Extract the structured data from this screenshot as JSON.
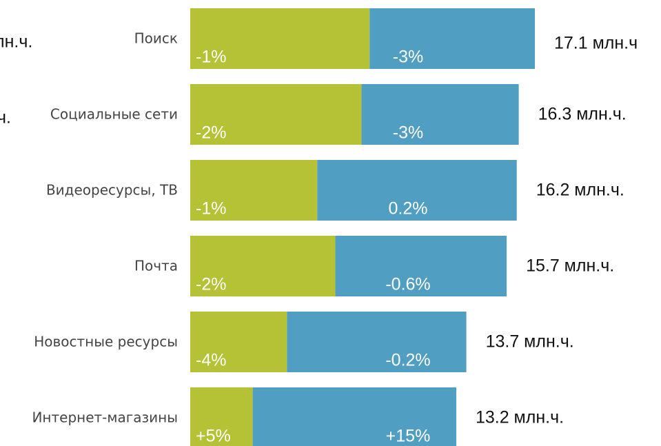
{
  "chart_data": {
    "type": "stacked-bar-horizontal",
    "categories": [
      "Поиск",
      "Социальные сети",
      "Видеоресурсы, ТВ",
      "Почта",
      "Новостные ресурсы",
      "Интернет-магазины"
    ],
    "series": [
      {
        "color": "#b5c235",
        "values": [
          8.9,
          8.5,
          6.3,
          7.2,
          4.8,
          3.1
        ],
        "change_labels": [
          "-1%",
          "-2%",
          "-1%",
          "-2%",
          "-4%",
          "+5%"
        ]
      },
      {
        "color": "#519ec3",
        "values": [
          8.2,
          7.8,
          9.9,
          8.5,
          8.9,
          10.1
        ],
        "change_labels": [
          "-3%",
          "-3%",
          "0.2%",
          "-0.6%",
          "-0.2%",
          "+15%"
        ]
      }
    ],
    "totals": [
      17.1,
      16.3,
      16.2,
      15.7,
      13.7,
      13.2
    ],
    "total_labels": [
      "17.1 млн.ч",
      "16.3 млн.ч.",
      "16.2 млн.ч.",
      "15.7 млн.ч.",
      "13.7 млн.ч.",
      "13.2 млн.ч."
    ],
    "clipped_labels": [
      "лн.ч.",
      "ч."
    ]
  }
}
